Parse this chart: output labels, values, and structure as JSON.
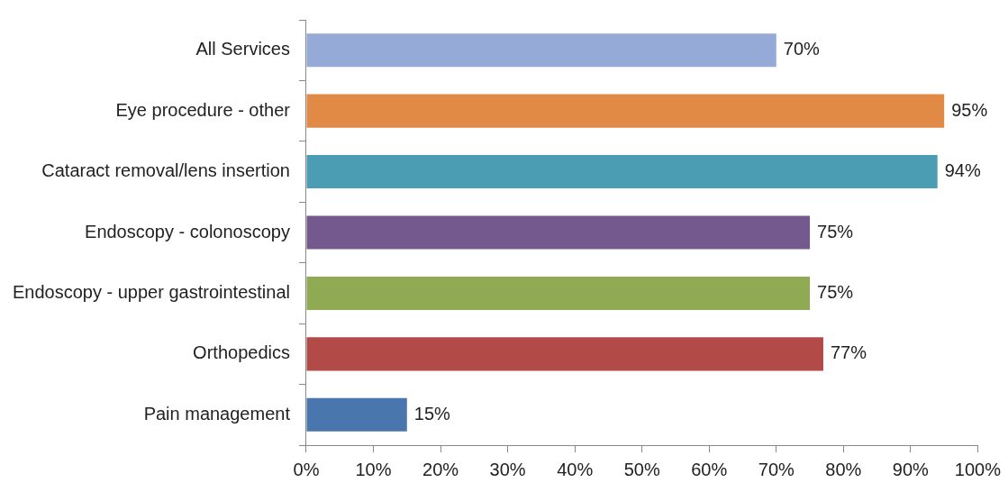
{
  "chart_data": {
    "type": "bar",
    "orientation": "horizontal",
    "categories": [
      "All Services",
      "Eye procedure - other",
      "Cataract removal/lens insertion",
      "Endoscopy - colonoscopy",
      "Endoscopy - upper gastrointestinal",
      "Orthopedics",
      "Pain management"
    ],
    "values": [
      70,
      95,
      94,
      75,
      75,
      77,
      15
    ],
    "colors": [
      "#95aad6",
      "#e08a45",
      "#4a9db3",
      "#74598f",
      "#8faa52",
      "#b24b47",
      "#4a76ae"
    ],
    "value_labels": [
      "70%",
      "95%",
      "94%",
      "75%",
      "75%",
      "77%",
      "15%"
    ],
    "xlim": [
      0,
      100
    ],
    "xticks": [
      {
        "value": 0,
        "label": "0%"
      },
      {
        "value": 10,
        "label": "10%"
      },
      {
        "value": 20,
        "label": "20%"
      },
      {
        "value": 30,
        "label": "30%"
      },
      {
        "value": 40,
        "label": "40%"
      },
      {
        "value": 50,
        "label": "50%"
      },
      {
        "value": 60,
        "label": "60%"
      },
      {
        "value": 70,
        "label": "70%"
      },
      {
        "value": 80,
        "label": "80%"
      },
      {
        "value": 90,
        "label": "90%"
      },
      {
        "value": 100,
        "label": "100%"
      }
    ],
    "grid": false,
    "legend": false
  }
}
